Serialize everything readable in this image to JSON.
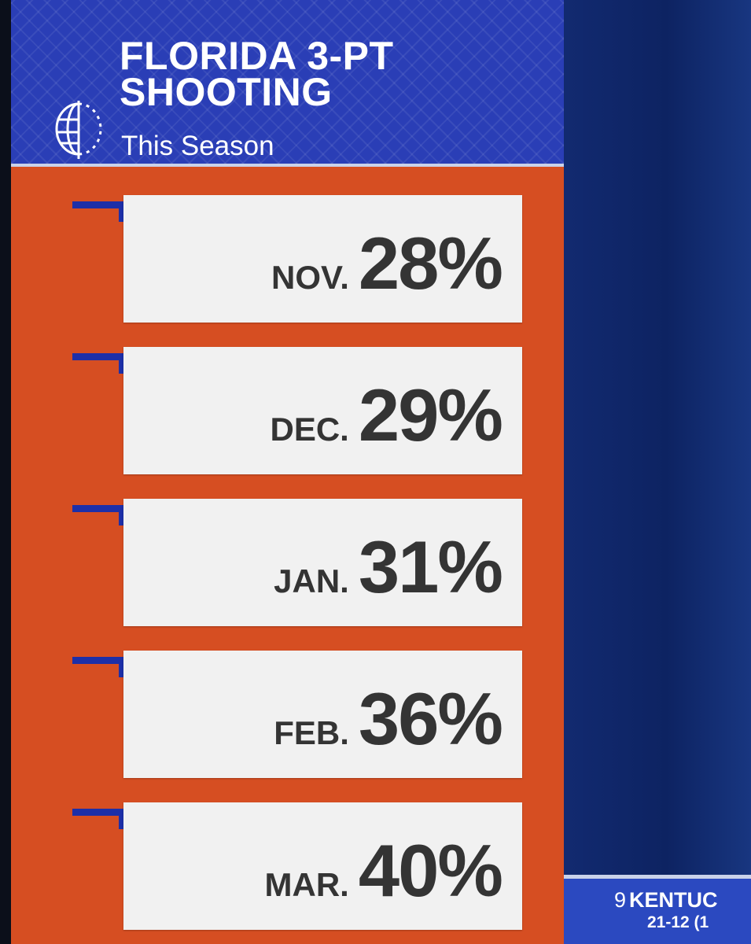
{
  "graphic": {
    "title_line1": "FLORIDA 3-PT",
    "title_line2": "SHOOTING",
    "subtitle": "This Season",
    "stats": [
      {
        "month": "NOV.",
        "value": "28%"
      },
      {
        "month": "DEC.",
        "value": "29%"
      },
      {
        "month": "JAN.",
        "value": "31%"
      },
      {
        "month": "FEB.",
        "value": "36%"
      },
      {
        "month": "MAR.",
        "value": "40%"
      }
    ]
  },
  "scorebug": {
    "seed": "9",
    "team": "KENTUC",
    "record": "21-12 (1"
  },
  "colors": {
    "header_blue": "#2a3eb6",
    "panel_orange": "#d64e22",
    "card_white": "#f1f1f1",
    "tab_blue": "#1d2fa8",
    "text_dark": "#343434"
  },
  "icons": {
    "header": "basketball-globe-icon"
  }
}
